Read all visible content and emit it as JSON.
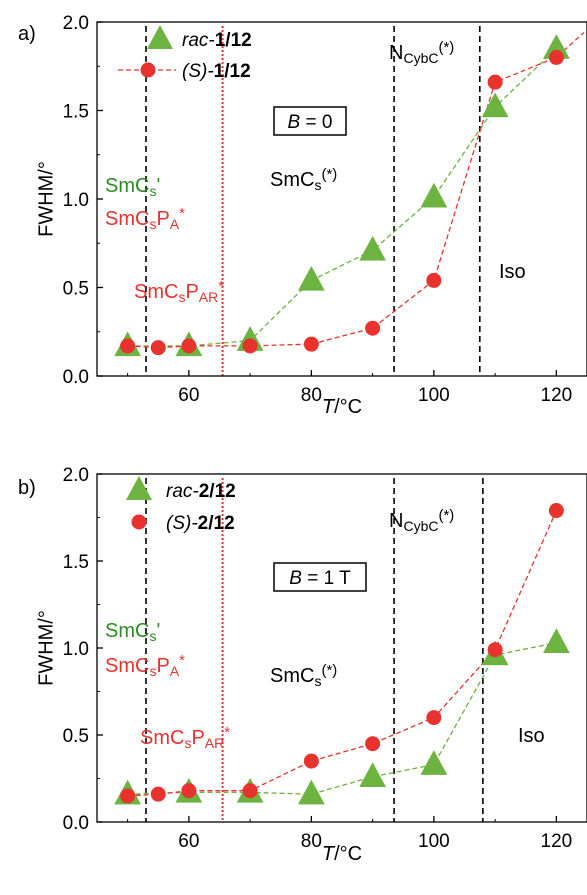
{
  "colors": {
    "green": "#6cb33f",
    "green_label": "#2e8b22",
    "red": "#e8322e",
    "black": "#000000"
  },
  "chart_data": [
    {
      "panel_label": "a)",
      "type": "scatter",
      "xlabel": "T/°C",
      "ylabel": "FWHM/°",
      "xlim": [
        45,
        125
      ],
      "ylim": [
        0,
        2.0
      ],
      "x_ticks": [
        60,
        80,
        100,
        120
      ],
      "y_ticks": [
        0.0,
        0.5,
        1.0,
        1.5,
        2.0
      ],
      "x_tick_labels": [
        "60",
        "80",
        "100",
        "120"
      ],
      "y_tick_labels": [
        "0.0",
        "0.5",
        "1.0",
        "1.5",
        "2.0"
      ],
      "field_label": "B = 0",
      "field_parts": [
        "B",
        " = 0"
      ],
      "series": [
        {
          "name": "rac-1/12",
          "name_parts": [
            "rac-",
            "1/12"
          ],
          "marker": "triangle",
          "color": "green",
          "x": [
            50,
            60,
            70,
            80,
            90,
            100,
            110,
            120
          ],
          "y": [
            0.17,
            0.17,
            0.2,
            0.54,
            0.71,
            1.01,
            1.52,
            1.85
          ]
        },
        {
          "name": "(S)-1/12",
          "name_parts": [
            "(S)-",
            "1/12"
          ],
          "marker": "circle",
          "color": "red",
          "x": [
            50,
            55,
            60,
            70,
            80,
            90,
            100,
            110,
            120
          ],
          "y": [
            0.17,
            0.16,
            0.17,
            0.17,
            0.18,
            0.27,
            0.54,
            1.66,
            1.8
          ]
        }
      ],
      "vlines": [
        {
          "x": 53,
          "color": "black",
          "style": "dash"
        },
        {
          "x": 65.5,
          "color": "red",
          "style": "dot"
        },
        {
          "x": 93.5,
          "color": "black",
          "style": "dash"
        },
        {
          "x": 107.5,
          "color": "black",
          "style": "dash"
        }
      ],
      "phase_labels": {
        "smc_s_prime": [
          "SmC",
          "s",
          "'"
        ],
        "smc_s_pa": [
          "SmC",
          "s",
          "P",
          "A",
          "*"
        ],
        "smc_s_par": [
          "SmC",
          "s",
          "P",
          "AR",
          "*"
        ],
        "smc_s": [
          "SmC",
          "s",
          "(*)"
        ],
        "ncybc": [
          "N",
          "CybC",
          "(*)"
        ],
        "iso": [
          "Iso"
        ]
      }
    },
    {
      "panel_label": "b)",
      "type": "scatter",
      "xlabel": "T/°C",
      "ylabel": "FWHM/°",
      "xlim": [
        45,
        125
      ],
      "ylim": [
        0,
        2.0
      ],
      "x_ticks": [
        60,
        80,
        100,
        120
      ],
      "y_ticks": [
        0.0,
        0.5,
        1.0,
        1.5,
        2.0
      ],
      "x_tick_labels": [
        "60",
        "80",
        "100",
        "120"
      ],
      "y_tick_labels": [
        "0.0",
        "0.5",
        "1.0",
        "1.5",
        "2.0"
      ],
      "field_label": "B = 1 T",
      "field_parts": [
        "B",
        " = 1 T"
      ],
      "series": [
        {
          "name": "rac-2/12",
          "name_parts": [
            "rac-",
            "2/12"
          ],
          "marker": "triangle",
          "color": "green",
          "x": [
            50,
            60,
            70,
            80,
            90,
            100,
            110,
            120
          ],
          "y": [
            0.16,
            0.17,
            0.17,
            0.16,
            0.26,
            0.33,
            0.96,
            1.03
          ]
        },
        {
          "name": "(S)-2/12",
          "name_parts": [
            "(S)-",
            "2/12"
          ],
          "marker": "circle",
          "color": "red",
          "x": [
            50,
            55,
            60,
            70,
            80,
            90,
            100,
            110,
            120
          ],
          "y": [
            0.15,
            0.16,
            0.18,
            0.18,
            0.35,
            0.45,
            0.6,
            0.99,
            1.79
          ]
        }
      ],
      "vlines": [
        {
          "x": 53,
          "color": "black",
          "style": "dash"
        },
        {
          "x": 65.5,
          "color": "red",
          "style": "dot"
        },
        {
          "x": 93.5,
          "color": "black",
          "style": "dash"
        },
        {
          "x": 108,
          "color": "black",
          "style": "dash"
        }
      ],
      "phase_labels": {
        "smc_s_prime": [
          "SmC",
          "s",
          "'"
        ],
        "smc_s_pa": [
          "SmC",
          "s",
          "P",
          "A",
          "*"
        ],
        "smc_s_par": [
          "SmC",
          "s",
          "P",
          "AR",
          "*"
        ],
        "smc_s": [
          "SmC",
          "s",
          "(*)"
        ],
        "ncybc": [
          "N",
          "CybC",
          "(*)"
        ],
        "iso": [
          "Iso"
        ]
      }
    }
  ]
}
